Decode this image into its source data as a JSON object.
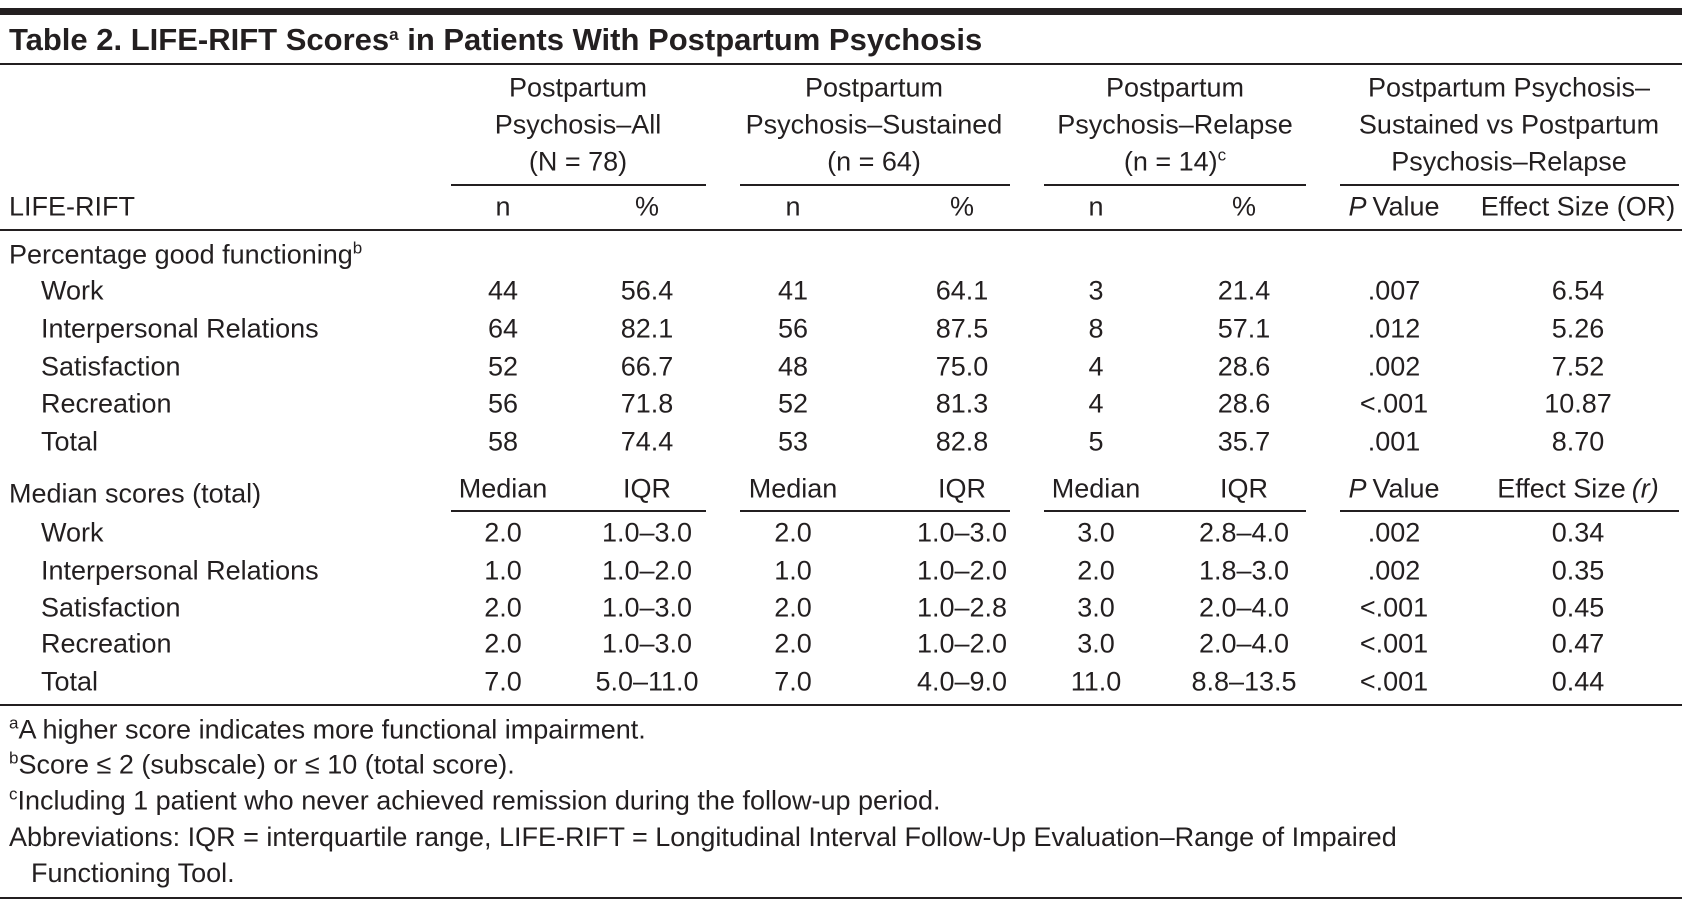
{
  "title": {
    "text": "Table 2. LIFE-RIFT Scores",
    "sup": "a",
    "rest": " in Patients With Postpartum Psychosis"
  },
  "groups": [
    {
      "lines": [
        "Postpartum",
        "Psychosis–All",
        "(N = 78)"
      ]
    },
    {
      "lines": [
        "Postpartum",
        "Psychosis–Sustained",
        "(n = 64)"
      ]
    },
    {
      "lines": [
        "Postpartum",
        "Psychosis–Relapse",
        "(n = 14)"
      ],
      "sup": "c"
    },
    {
      "lines": [
        "Postpartum Psychosis–",
        "Sustained vs Postpartum",
        "Psychosis–Relapse"
      ]
    }
  ],
  "columns": {
    "stub": "LIFE-RIFT",
    "headers": [
      "n",
      "%",
      "n",
      "%",
      "n",
      "%",
      {
        "parts": [
          {
            "text": "P",
            "style": "italic"
          },
          {
            "text": "Value"
          }
        ]
      },
      "Effect Size (OR)"
    ]
  },
  "sections": [
    {
      "label": "Percentage good functioning",
      "label_sup": "b",
      "rows": [
        {
          "label": "Work",
          "cells": [
            "44",
            "56.4",
            "41",
            "64.1",
            "3",
            "21.4",
            ".007",
            "6.54"
          ]
        },
        {
          "label": "Interpersonal Relations",
          "cells": [
            "64",
            "82.1",
            "56",
            "87.5",
            "8",
            "57.1",
            ".012",
            "5.26"
          ]
        },
        {
          "label": "Satisfaction",
          "cells": [
            "52",
            "66.7",
            "48",
            "75.0",
            "4",
            "28.6",
            ".002",
            "7.52"
          ]
        },
        {
          "label": "Recreation",
          "cells": [
            "56",
            "71.8",
            "52",
            "81.3",
            "4",
            "28.6",
            "<.001",
            "10.87"
          ]
        },
        {
          "label": "Total",
          "cells": [
            "58",
            "74.4",
            "53",
            "82.8",
            "5",
            "35.7",
            ".001",
            "8.70"
          ]
        }
      ]
    },
    {
      "label": "Median scores (total)",
      "subheaders": [
        "Median",
        "IQR",
        "Median",
        "IQR",
        "Median",
        "IQR",
        {
          "parts": [
            {
              "text": "P",
              "style": "italic"
            },
            {
              "text": "Value"
            }
          ]
        },
        {
          "parts": [
            {
              "text": "Effect Size"
            },
            {
              "text": "(r)",
              "style": "italic"
            }
          ]
        }
      ],
      "rows": [
        {
          "label": "Work",
          "cells": [
            "2.0",
            "1.0–3.0",
            "2.0",
            "1.0–3.0",
            "3.0",
            "2.8–4.0",
            ".002",
            "0.34"
          ]
        },
        {
          "label": "Interpersonal Relations",
          "cells": [
            "1.0",
            "1.0–2.0",
            "1.0",
            "1.0–2.0",
            "2.0",
            "1.8–3.0",
            ".002",
            "0.35"
          ]
        },
        {
          "label": "Satisfaction",
          "cells": [
            "2.0",
            "1.0–3.0",
            "2.0",
            "1.0–2.8",
            "3.0",
            "2.0–4.0",
            "<.001",
            "0.45"
          ]
        },
        {
          "label": "Recreation",
          "cells": [
            "2.0",
            "1.0–3.0",
            "2.0",
            "1.0–2.0",
            "3.0",
            "2.0–4.0",
            "<.001",
            "0.47"
          ]
        },
        {
          "label": "Total",
          "cells": [
            "7.0",
            "5.0–11.0",
            "7.0",
            "4.0–9.0",
            "11.0",
            "8.8–13.5",
            "<.001",
            "0.44"
          ]
        }
      ]
    }
  ],
  "footnotes": [
    {
      "sup": "a",
      "text": "A higher score indicates more functional impairment."
    },
    {
      "sup": "b",
      "text": "Score ≤ 2 (subscale) or ≤ 10 (total score)."
    },
    {
      "sup": "c",
      "text": "Including 1 patient who never achieved remission during the follow-up period."
    }
  ],
  "abbreviations": "Abbreviations: IQR = interquartile range, LIFE-RIFT = Longitudinal Interval Follow-Up Evaluation–Range of Impaired Functioning Tool."
}
